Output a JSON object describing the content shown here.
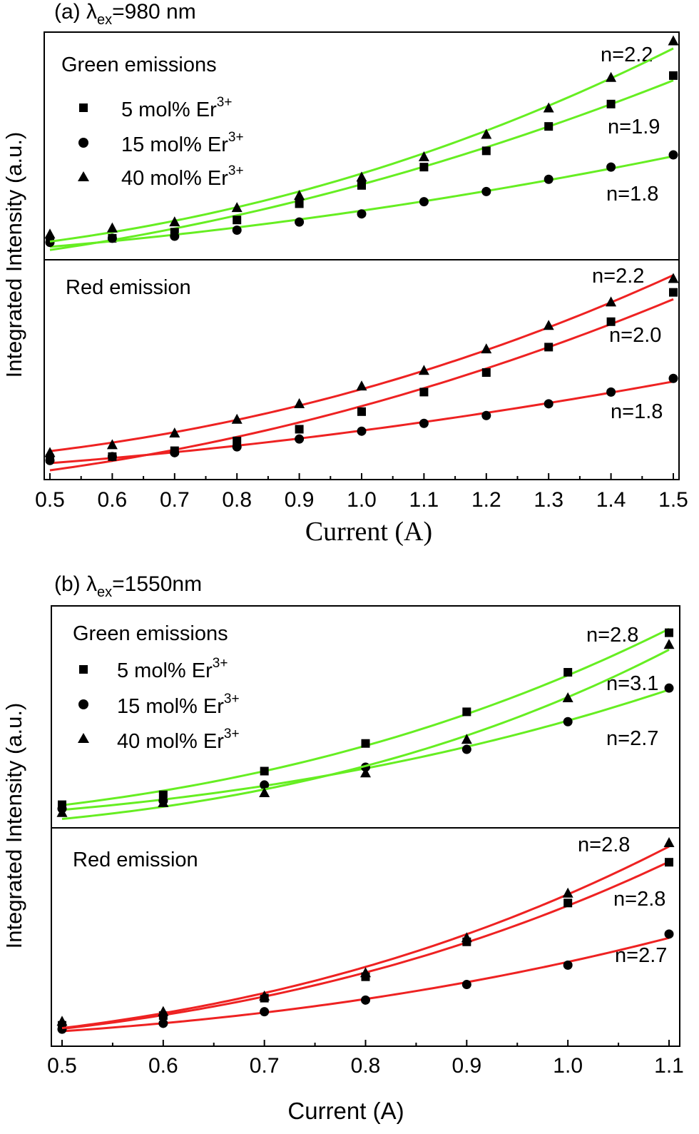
{
  "chart_data": [
    {
      "type": "scatter",
      "panel_label": "(a) ",
      "lambda_symbol": "λ",
      "lambda_sub": "ex",
      "lambda_value": "=980 nm",
      "xlabel": "Current (A)",
      "ylabel": "Integrated Intensity (a.u.)",
      "x_tick_labels": [
        "0.5",
        "0.6",
        "0.7",
        "0.8",
        "0.9",
        "1.0",
        "1.1",
        "1.2",
        "1.3",
        "1.4",
        "1.5"
      ],
      "xlim": [
        0.5,
        1.5
      ],
      "grid": false,
      "subplots": [
        {
          "title": "Green emissions",
          "fit_color": "#66ee22",
          "ylim": [
            0,
            100
          ],
          "legend": [
            {
              "marker": "square",
              "label": "5 mol% Er",
              "sup": "3+"
            },
            {
              "marker": "circle",
              "label": "15 mol% Er",
              "sup": "3+"
            },
            {
              "marker": "triangle",
              "label": "40 mol% Er",
              "sup": "3+"
            }
          ],
          "n_labels": [
            "n=2.2",
            "n=1.9",
            "n=1.8"
          ],
          "series": [
            {
              "name": "5 mol% Er3+",
              "marker": "square",
              "n": 1.9,
              "x": [
                0.5,
                0.6,
                0.7,
                0.8,
                0.9,
                1.0,
                1.1,
                1.2,
                1.3,
                1.4,
                1.5
              ],
              "y": [
                5,
                6,
                9,
                15,
                23,
                32,
                41,
                49,
                61,
                72,
                86
              ]
            },
            {
              "name": "15 mol% Er3+",
              "marker": "circle",
              "n": 1.8,
              "x": [
                0.5,
                0.6,
                0.7,
                0.8,
                0.9,
                1.0,
                1.1,
                1.2,
                1.3,
                1.4,
                1.5
              ],
              "y": [
                4,
                6,
                7,
                10,
                14,
                18,
                24,
                29,
                35,
                41,
                47
              ]
            },
            {
              "name": "40 mol% Er3+",
              "marker": "triangle",
              "n": 2.2,
              "x": [
                0.5,
                0.6,
                0.7,
                0.8,
                0.9,
                1.0,
                1.1,
                1.2,
                1.3,
                1.4,
                1.5
              ],
              "y": [
                8,
                11,
                14,
                21,
                27,
                36,
                46,
                57,
                70,
                85,
                103
              ]
            }
          ]
        },
        {
          "title": "Red emission",
          "fit_color": "#ee2222",
          "ylim": [
            0,
            100
          ],
          "legend": [],
          "n_labels": [
            "n=2.2",
            "n=2.0",
            "n=1.8"
          ],
          "series": [
            {
              "name": "5 mol% Er3+",
              "marker": "square",
              "n": 2.0,
              "x": [
                0.5,
                0.6,
                0.7,
                0.8,
                0.9,
                1.0,
                1.1,
                1.2,
                1.3,
                1.4,
                1.5
              ],
              "y": [
                6,
                7,
                10,
                15,
                21,
                30,
                40,
                50,
                63,
                76,
                91
              ]
            },
            {
              "name": "15 mol% Er3+",
              "marker": "circle",
              "n": 1.8,
              "x": [
                0.5,
                0.6,
                0.7,
                0.8,
                0.9,
                1.0,
                1.1,
                1.2,
                1.3,
                1.4,
                1.5
              ],
              "y": [
                5,
                7,
                9,
                12,
                16,
                20,
                24,
                28,
                34,
                40,
                47
              ]
            },
            {
              "name": "40 mol% Er3+",
              "marker": "triangle",
              "n": 2.2,
              "x": [
                0.5,
                0.6,
                0.7,
                0.8,
                0.9,
                1.0,
                1.1,
                1.2,
                1.3,
                1.4,
                1.5
              ],
              "y": [
                9,
                13,
                19,
                26,
                34,
                43,
                51,
                62,
                74,
                86,
                98
              ]
            }
          ]
        }
      ]
    },
    {
      "type": "scatter",
      "panel_label": "(b) ",
      "lambda_symbol": "λ",
      "lambda_sub": "ex",
      "lambda_value": "=1550nm",
      "xlabel": "Current (A)",
      "ylabel": "Integrated Intensity (a.u.)",
      "x_tick_labels": [
        "0.5",
        "0.6",
        "0.7",
        "0.8",
        "0.9",
        "1.0",
        "1.1"
      ],
      "xlim": [
        0.5,
        1.1
      ],
      "grid": false,
      "subplots": [
        {
          "title": "Green emissions",
          "fit_color": "#66ee22",
          "ylim": [
            0,
            100
          ],
          "legend": [
            {
              "marker": "square",
              "label": "5 mol% Er",
              "sup": "3+"
            },
            {
              "marker": "circle",
              "label": "15 mol% Er",
              "sup": "3+"
            },
            {
              "marker": "triangle",
              "label": "40 mol% Er",
              "sup": "3+"
            }
          ],
          "n_labels": [
            "n=2.8",
            "n=3.1",
            "n=2.7"
          ],
          "series": [
            {
              "name": "5 mol% Er3+",
              "marker": "square",
              "n": 2.8,
              "x": [
                0.5,
                0.6,
                0.7,
                0.8,
                0.9,
                1.0,
                1.1
              ],
              "y": [
                7,
                12,
                24,
                38,
                54,
                74,
                94
              ]
            },
            {
              "name": "15 mol% Er3+",
              "marker": "circle",
              "n": 2.7,
              "x": [
                0.5,
                0.6,
                0.7,
                0.8,
                0.9,
                1.0,
                1.1
              ],
              "y": [
                5,
                9,
                17,
                26,
                35,
                49,
                66
              ]
            },
            {
              "name": "40 mol% Er3+",
              "marker": "triangle",
              "n": 3.1,
              "x": [
                0.5,
                0.6,
                0.7,
                0.8,
                0.9,
                1.0,
                1.1
              ],
              "y": [
                3,
                8,
                13,
                23,
                40,
                61,
                88
              ]
            }
          ]
        },
        {
          "title": "Red emission",
          "fit_color": "#ee2222",
          "ylim": [
            0,
            100
          ],
          "legend": [],
          "n_labels": [
            "n=2.8",
            "n=2.8",
            "n=2.7"
          ],
          "series": [
            {
              "name": "5 mol% Er3+",
              "marker": "square",
              "n": 2.8,
              "x": [
                0.5,
                0.6,
                0.7,
                0.8,
                0.9,
                1.0,
                1.1
              ],
              "y": [
                6,
                11,
                20,
                31,
                49,
                69,
                90
              ]
            },
            {
              "name": "15 mol% Er3+",
              "marker": "circle",
              "n": 2.7,
              "x": [
                0.5,
                0.6,
                0.7,
                0.8,
                0.9,
                1.0,
                1.1
              ],
              "y": [
                4,
                7,
                13,
                19,
                27,
                37,
                53
              ]
            },
            {
              "name": "40 mol% Er3+",
              "marker": "triangle",
              "n": 2.8,
              "x": [
                0.5,
                0.6,
                0.7,
                0.8,
                0.9,
                1.0,
                1.1
              ],
              "y": [
                8,
                13,
                21,
                33,
                51,
                74,
                100
              ]
            }
          ]
        }
      ]
    }
  ]
}
